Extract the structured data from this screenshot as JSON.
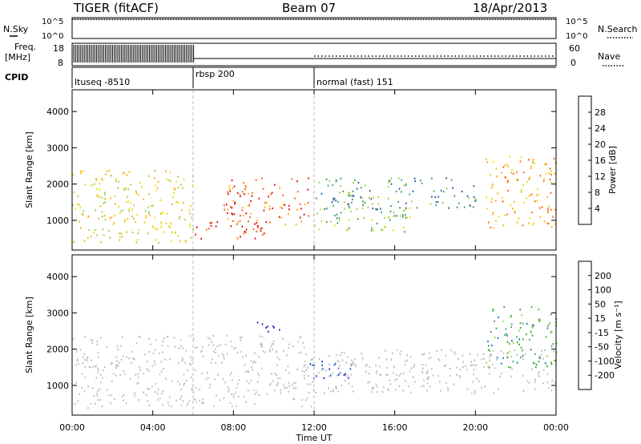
{
  "header": {
    "radar": "TIGER (fitACF)",
    "beam": "Beam 07",
    "date": "18/Apr/2013"
  },
  "left_labels": {
    "nsky": "N.Sky",
    "freq_line1": "Freq.",
    "freq_line2": "[MHz]",
    "cpid": "CPID"
  },
  "right_labels": {
    "nsearch": "N.Search",
    "nave": "Nave"
  },
  "strip_ticks": {
    "nsky_left": [
      "10^5",
      "10^0"
    ],
    "nsky_right": [
      "10^5",
      "10^0"
    ],
    "freq_left": [
      "18",
      "8"
    ],
    "freq_right": [
      "60",
      "0"
    ]
  },
  "cpid_segments": [
    {
      "label": "ltuseq -8510",
      "start_hour": 0,
      "end_hour": 6
    },
    {
      "label": "rbsp 200",
      "start_hour": 6,
      "end_hour": 12
    },
    {
      "label": "normal (fast) 151",
      "start_hour": 12,
      "end_hour": 24
    }
  ],
  "x_axis": {
    "label": "Time UT",
    "ticks": [
      "00:00",
      "04:00",
      "08:00",
      "12:00",
      "16:00",
      "20:00",
      "00:00"
    ],
    "range_hours": [
      0,
      24
    ]
  },
  "power_panel": {
    "ylabel": "Slant Range [km]",
    "yticks": [
      "1000",
      "2000",
      "3000",
      "4000"
    ],
    "ylim_km": [
      180,
      4600
    ],
    "colorbar_label": "Power [dB]",
    "colorbar_ticks": [
      "28",
      "24",
      "20",
      "16",
      "12",
      "8",
      "4"
    ],
    "colors": [
      "#e00000",
      "#ff5500",
      "#ffaa00",
      "#dddd00",
      "#99cc33",
      "#339966",
      "#225599",
      "#1a1aff"
    ]
  },
  "velocity_panel": {
    "ylabel": "Slant Range [km]",
    "yticks": [
      "1000",
      "2000",
      "3000",
      "4000"
    ],
    "ylim_km": [
      180,
      4600
    ],
    "colorbar_label": "Velocity [m s⁻¹]",
    "colorbar_ticks": [
      "200",
      "100",
      "50",
      "15",
      "-15",
      "-50",
      "-100",
      "-200"
    ],
    "colors": [
      "#1a1acc",
      "#1a66cc",
      "#33aa33",
      "#88dd33",
      "#bbbbbb",
      "#ffaa00",
      "#ff6600",
      "#dd0000",
      "#ff0000"
    ]
  },
  "chart_data": {
    "type": "heatmap",
    "title": "TIGER (fitACF) Beam 07 18/Apr/2013",
    "xlabel": "Time UT",
    "ylabel": "Slant Range [km]",
    "x_range_hours": [
      0,
      24
    ],
    "y_range_km": [
      180,
      4600
    ],
    "power_scatter_regions": [
      {
        "t0": 0.0,
        "t1": 6.0,
        "r0": 400,
        "r1": 2400,
        "level_db": 18
      },
      {
        "t0": 6.0,
        "t1": 9.5,
        "r0": 500,
        "r1": 1000,
        "level_db": 28
      },
      {
        "t0": 7.5,
        "t1": 12.0,
        "r0": 900,
        "r1": 2200,
        "level_db": 24
      },
      {
        "t0": 12.0,
        "t1": 20.0,
        "r0": 1300,
        "r1": 2200,
        "level_db": 10
      },
      {
        "t0": 12.0,
        "t1": 17.0,
        "r0": 700,
        "r1": 1400,
        "level_db": 14
      },
      {
        "t0": 20.5,
        "t1": 24.0,
        "r0": 800,
        "r1": 2800,
        "level_db": 22
      }
    ],
    "velocity_scatter_regions": [
      {
        "t0": 0.0,
        "t1": 12.0,
        "r0": 400,
        "r1": 2400,
        "vel": 0
      },
      {
        "t0": 9.0,
        "t1": 10.5,
        "r0": 2500,
        "r1": 2800,
        "vel": 200
      },
      {
        "t0": 11.5,
        "t1": 14.0,
        "r0": 1200,
        "r1": 1700,
        "vel": 150
      },
      {
        "t0": 12.0,
        "t1": 24.0,
        "r0": 800,
        "r1": 2000,
        "vel": 0
      },
      {
        "t0": 20.5,
        "t1": 24.0,
        "r0": 1500,
        "r1": 3200,
        "vel": 60
      }
    ]
  }
}
